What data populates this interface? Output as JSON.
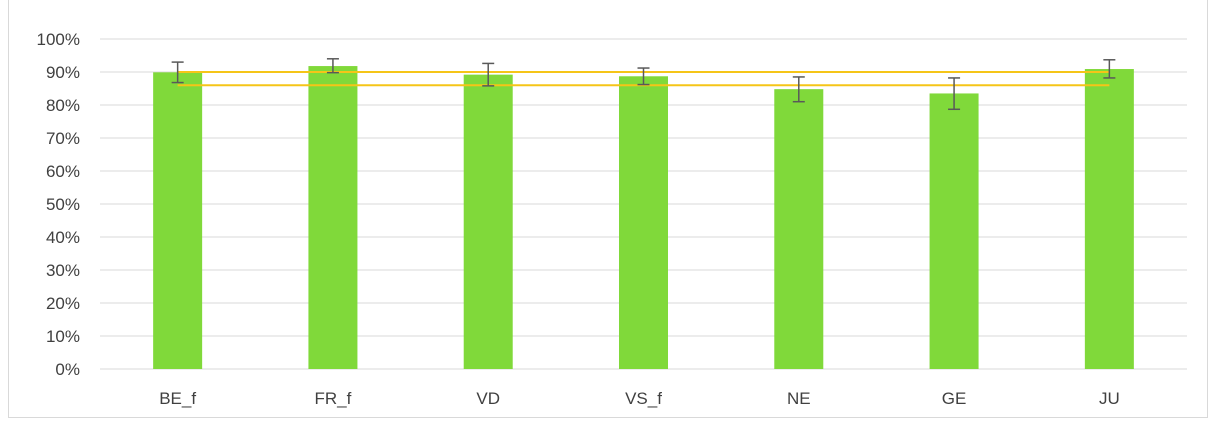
{
  "chart_data": {
    "type": "bar",
    "categories": [
      "BE_f",
      "FR_f",
      "VD",
      "VS_f",
      "NE",
      "GE",
      "JU"
    ],
    "values": [
      0.899,
      0.918,
      0.892,
      0.887,
      0.848,
      0.835,
      0.909
    ],
    "error_low": [
      0.868,
      0.898,
      0.858,
      0.862,
      0.81,
      0.787,
      0.882
    ],
    "error_high": [
      0.93,
      0.94,
      0.926,
      0.912,
      0.885,
      0.882,
      0.937
    ],
    "reference_lines": [
      0.9,
      0.86
    ],
    "ylim": [
      0,
      1
    ],
    "yticks": [
      "0%",
      "10%",
      "20%",
      "30%",
      "40%",
      "50%",
      "60%",
      "70%",
      "80%",
      "90%",
      "100%"
    ],
    "title": "",
    "xlabel": "",
    "ylabel": "",
    "grid": true,
    "bar_color": "#80d93a",
    "reference_line_color": "#f5c518",
    "error_bar_color": "#595959",
    "grid_color": "#d9d9d9"
  }
}
